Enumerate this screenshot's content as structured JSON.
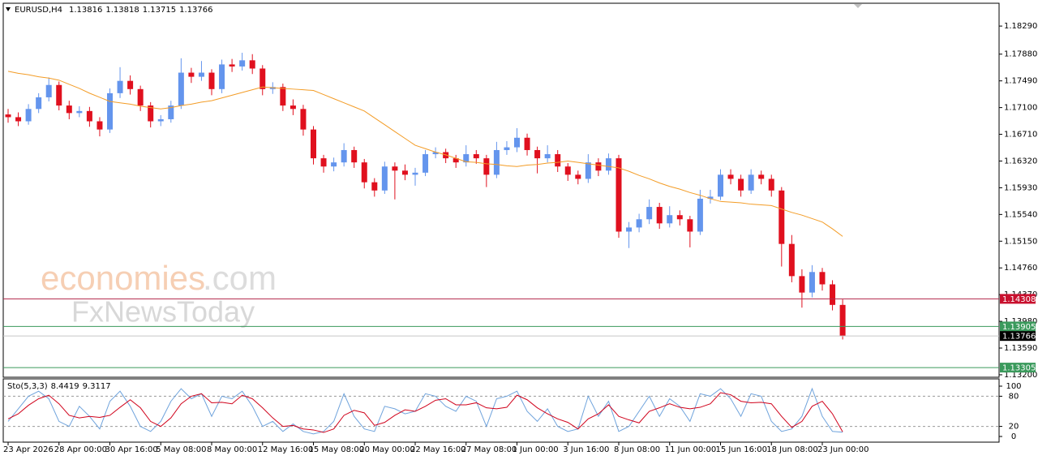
{
  "chart_data": [
    {
      "type": "candlestick",
      "title": "EURUSD,H4",
      "header_values": [
        1.13816,
        1.13818,
        1.13715,
        1.13766
      ],
      "watermark": [
        "economies",
        ".com",
        "FxNewsToday"
      ],
      "categories": [
        "23 Apr 2026",
        null,
        null,
        null,
        null,
        "28 Apr 00:00",
        null,
        null,
        null,
        null,
        "30 Apr 16:00",
        null,
        null,
        null,
        null,
        "5 May 08:00",
        null,
        null,
        null,
        null,
        "8 May 00:00",
        null,
        null,
        null,
        null,
        "12 May 16:00",
        null,
        null,
        null,
        null,
        "15 May 08:00",
        null,
        null,
        null,
        null,
        "20 May 00:00",
        null,
        null,
        null,
        null,
        "22 May 16:00",
        null,
        null,
        null,
        null,
        "27 May 08:00",
        null,
        null,
        null,
        null,
        "1 Jun 00:00",
        null,
        null,
        null,
        null,
        "3 Jun 16:00",
        null,
        null,
        null,
        null,
        "8 Jun 08:00",
        null,
        null,
        null,
        null,
        "11 Jun 00:00",
        null,
        null,
        null,
        null,
        "15 Jun 16:00",
        null,
        null,
        null,
        null,
        "18 Jun 08:00",
        null,
        null,
        null,
        null,
        "23 Jun 00:00",
        null,
        null
      ],
      "open": [
        1.17,
        1.1696,
        1.169,
        1.1708,
        1.1725,
        1.1743,
        1.1713,
        1.1702,
        1.1705,
        1.169,
        1.1678,
        1.1731,
        1.1749,
        1.1737,
        1.1713,
        1.169,
        1.1693,
        1.1713,
        1.1761,
        1.1755,
        1.1761,
        1.1737,
        1.1773,
        1.177,
        1.1779,
        1.1767,
        1.1737,
        1.174,
        1.1713,
        1.1708,
        1.1678,
        1.1636,
        1.1624,
        1.163,
        1.1648,
        1.163,
        1.1601,
        1.1589,
        1.1624,
        1.1618,
        1.1612,
        1.1615,
        1.1642,
        1.1645,
        1.1636,
        1.163,
        1.1642,
        1.1636,
        1.1612,
        1.1648,
        1.1652,
        1.1666,
        1.1648,
        1.1636,
        1.1642,
        1.1624,
        1.1612,
        1.1606,
        1.163,
        1.1618,
        1.1636,
        1.1529,
        1.1535,
        1.1547,
        1.1565,
        1.1541,
        1.1553,
        1.1547,
        1.1529,
        1.1577,
        1.158,
        1.1612,
        1.1606,
        1.1589,
        1.1612,
        1.1606,
        1.1589,
        1.1511,
        1.1464,
        1.144,
        1.147,
        1.1452,
        1.1422
      ],
      "high": [
        1.1708,
        1.1703,
        1.1715,
        1.1731,
        1.1754,
        1.1748,
        1.172,
        1.1712,
        1.1711,
        1.1696,
        1.1738,
        1.1769,
        1.1757,
        1.1742,
        1.1718,
        1.1699,
        1.172,
        1.1782,
        1.1768,
        1.1778,
        1.1766,
        1.178,
        1.1781,
        1.179,
        1.1788,
        1.1772,
        1.1747,
        1.1745,
        1.1722,
        1.1714,
        1.1683,
        1.1641,
        1.1637,
        1.1658,
        1.1653,
        1.1635,
        1.1607,
        1.1631,
        1.163,
        1.1627,
        1.1622,
        1.1648,
        1.1652,
        1.165,
        1.1641,
        1.1655,
        1.1648,
        1.1641,
        1.166,
        1.1661,
        1.168,
        1.1672,
        1.1653,
        1.1655,
        1.1648,
        1.1629,
        1.1618,
        1.1642,
        1.1636,
        1.1643,
        1.1641,
        1.1543,
        1.1555,
        1.1576,
        1.1571,
        1.1566,
        1.156,
        1.1552,
        1.159,
        1.159,
        1.162,
        1.162,
        1.1612,
        1.162,
        1.1618,
        1.1612,
        1.1594,
        1.1524,
        1.1474,
        1.148,
        1.1476,
        1.1458,
        1.143
      ],
      "low": [
        1.1688,
        1.1683,
        1.1685,
        1.1702,
        1.1719,
        1.1706,
        1.1693,
        1.1696,
        1.1682,
        1.1668,
        1.1673,
        1.1724,
        1.1729,
        1.1705,
        1.1681,
        1.1683,
        1.1688,
        1.1708,
        1.1746,
        1.1749,
        1.1728,
        1.1731,
        1.1762,
        1.1764,
        1.1759,
        1.1728,
        1.173,
        1.1705,
        1.1699,
        1.1669,
        1.1627,
        1.1615,
        1.1617,
        1.1624,
        1.1622,
        1.1592,
        1.158,
        1.1584,
        1.1576,
        1.1604,
        1.1596,
        1.161,
        1.1636,
        1.1629,
        1.1622,
        1.1624,
        1.1628,
        1.1594,
        1.1607,
        1.1641,
        1.1645,
        1.164,
        1.1614,
        1.163,
        1.1616,
        1.1603,
        1.1598,
        1.16,
        1.161,
        1.1612,
        1.152,
        1.1505,
        1.1528,
        1.154,
        1.1533,
        1.1535,
        1.1538,
        1.1506,
        1.1524,
        1.157,
        1.1575,
        1.1598,
        1.158,
        1.1584,
        1.1598,
        1.158,
        1.1478,
        1.1455,
        1.1418,
        1.1433,
        1.1443,
        1.1414,
        1.13715
      ],
      "close": [
        1.1696,
        1.169,
        1.1708,
        1.1725,
        1.1743,
        1.1713,
        1.1702,
        1.1705,
        1.169,
        1.1678,
        1.1731,
        1.1749,
        1.1737,
        1.1713,
        1.169,
        1.1693,
        1.1713,
        1.1761,
        1.1755,
        1.1761,
        1.1737,
        1.1773,
        1.177,
        1.1779,
        1.1767,
        1.1737,
        1.174,
        1.1713,
        1.1708,
        1.1678,
        1.1636,
        1.1624,
        1.163,
        1.1648,
        1.163,
        1.1601,
        1.1589,
        1.1624,
        1.1618,
        1.1612,
        1.1615,
        1.1642,
        1.1645,
        1.1636,
        1.163,
        1.1642,
        1.1636,
        1.1612,
        1.1648,
        1.1652,
        1.1666,
        1.1648,
        1.1636,
        1.1642,
        1.1624,
        1.1612,
        1.1606,
        1.163,
        1.1618,
        1.1636,
        1.1529,
        1.1535,
        1.1547,
        1.1565,
        1.1541,
        1.1553,
        1.1547,
        1.1529,
        1.1577,
        1.158,
        1.1612,
        1.1606,
        1.1589,
        1.1612,
        1.1606,
        1.1589,
        1.1511,
        1.1464,
        1.144,
        1.147,
        1.1452,
        1.1422,
        1.13766
      ],
      "up_color": "#6495ed",
      "down_color": "#e0101e",
      "moving_average": {
        "color": "#f39c26",
        "values": [
          1.1763,
          1.176,
          1.1758,
          1.1755,
          1.1753,
          1.175,
          1.1744,
          1.1738,
          1.1731,
          1.1725,
          1.1719,
          1.1717,
          1.1715,
          1.1712,
          1.171,
          1.1708,
          1.171,
          1.1713,
          1.1715,
          1.1718,
          1.172,
          1.1724,
          1.1728,
          1.1732,
          1.1736,
          1.174,
          1.1739,
          1.1738,
          1.1737,
          1.1736,
          1.1735,
          1.1729,
          1.1723,
          1.1717,
          1.1711,
          1.1705,
          1.1695,
          1.1685,
          1.1675,
          1.1665,
          1.1655,
          1.165,
          1.1645,
          1.1641,
          1.1636,
          1.1631,
          1.163,
          1.1628,
          1.1627,
          1.1625,
          1.1624,
          1.1626,
          1.1627,
          1.1629,
          1.163,
          1.1632,
          1.163,
          1.1628,
          1.1626,
          1.1624,
          1.1622,
          1.1617,
          1.1611,
          1.1606,
          1.16,
          1.1595,
          1.1591,
          1.1586,
          1.1582,
          1.1577,
          1.1573,
          1.1572,
          1.1571,
          1.1569,
          1.1568,
          1.1567,
          1.1562,
          1.1557,
          1.1553,
          1.1548,
          1.1543,
          1.1533,
          1.1522
        ]
      },
      "ylim": [
        1.13164,
        1.18623
      ],
      "yticks": [
        {
          "value": 1.1829,
          "label": "1.18290"
        },
        {
          "value": 1.1788,
          "label": "1.17880"
        },
        {
          "value": 1.1749,
          "label": "1.17490"
        },
        {
          "value": 1.171,
          "label": "1.17100"
        },
        {
          "value": 1.1671,
          "label": "1.16710"
        },
        {
          "value": 1.1632,
          "label": "1.16320"
        },
        {
          "value": 1.1593,
          "label": "1.15930"
        },
        {
          "value": 1.1554,
          "label": "1.15540"
        },
        {
          "value": 1.1515,
          "label": "1.15150"
        },
        {
          "value": 1.1476,
          "label": "1.14760"
        },
        {
          "value": 1.1437,
          "label": "1.14370"
        },
        {
          "value": 1.1398,
          "label": "1.13980"
        },
        {
          "value": 1.1359,
          "label": "1.13590"
        },
        {
          "value": 1.132,
          "label": "1.13200"
        }
      ],
      "price_lines": [
        {
          "value": 1.14308,
          "line_color": "#b3264a",
          "box_color": "#c8102e"
        },
        {
          "value": 1.13905,
          "line_color": "#3a9a5c",
          "box_color": "#3a9a5c"
        },
        {
          "value": 1.13766,
          "line_color": "#c8c8c8",
          "box_color": "#000000"
        },
        {
          "value": 1.13305,
          "line_color": "#3a9a5c",
          "box_color": "#3a9a5c"
        }
      ]
    },
    {
      "type": "line",
      "title": "Sto(5,3,3)",
      "series": [
        {
          "color": "#6fa3dc",
          "values": [
            30,
            55,
            80,
            90,
            75,
            30,
            20,
            60,
            40,
            15,
            70,
            90,
            60,
            20,
            10,
            30,
            70,
            95,
            75,
            85,
            40,
            80,
            75,
            90,
            60,
            20,
            30,
            10,
            25,
            10,
            5,
            10,
            30,
            85,
            40,
            15,
            10,
            60,
            55,
            45,
            50,
            85,
            80,
            60,
            50,
            80,
            70,
            20,
            75,
            80,
            90,
            50,
            30,
            55,
            20,
            10,
            15,
            80,
            40,
            70,
            10,
            20,
            50,
            80,
            40,
            75,
            60,
            30,
            85,
            80,
            95,
            75,
            40,
            85,
            80,
            30,
            10,
            15,
            40,
            95,
            40,
            10,
            8.4419
          ]
        },
        {
          "color": "#d0021b",
          "values": [
            35,
            45,
            62,
            75,
            82,
            65,
            42,
            37,
            40,
            38,
            42,
            58,
            73,
            57,
            30,
            20,
            37,
            65,
            80,
            85,
            67,
            68,
            65,
            82,
            75,
            57,
            37,
            20,
            22,
            15,
            13,
            8,
            15,
            42,
            52,
            47,
            22,
            28,
            42,
            53,
            50,
            60,
            72,
            75,
            63,
            63,
            67,
            57,
            55,
            58,
            82,
            73,
            57,
            45,
            35,
            28,
            15,
            35,
            45,
            63,
            40,
            33,
            27,
            50,
            57,
            65,
            58,
            55,
            58,
            65,
            87,
            83,
            70,
            67,
            68,
            65,
            40,
            18,
            30,
            60,
            70,
            45,
            9.3117
          ]
        }
      ],
      "ylim": [
        0,
        100
      ],
      "yticks": [
        100,
        80,
        20,
        0
      ]
    }
  ]
}
